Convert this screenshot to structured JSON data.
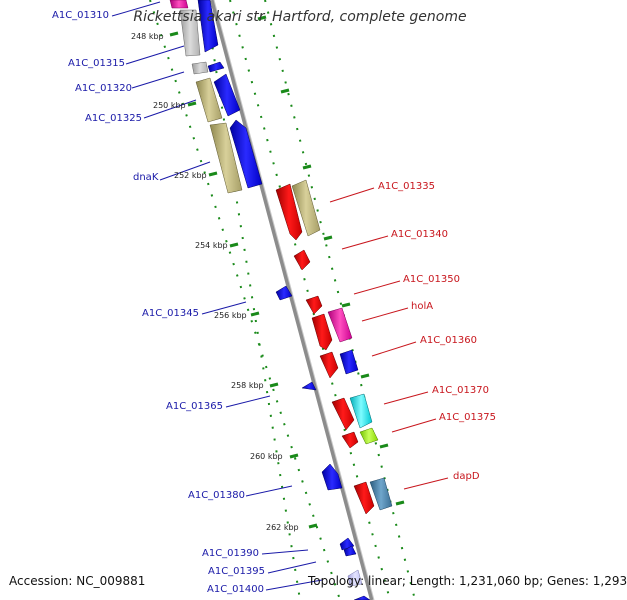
{
  "title": "Rickettsia akari str. Hartford, complete genome",
  "accession_text": "Accession: NC_009881",
  "summary_text": "Topology: linear; Length: 1,231,060 bp; Genes: 1,293",
  "colors": {
    "backbone": "#8c8c8c",
    "track_dots": "#1a8a1a",
    "left_label": "#1a1aa8",
    "right_label": "#c8161d"
  },
  "kbp_ticks": [
    "248 kbp",
    "250 kbp",
    "252 kbp",
    "254 kbp",
    "256 kbp",
    "258 kbp",
    "260 kbp",
    "262 kbp"
  ],
  "left_genes": [
    "A1C_01310",
    "A1C_01315",
    "A1C_01320",
    "A1C_01325",
    "dnaK",
    "A1C_01345",
    "A1C_01365",
    "A1C_01380",
    "A1C_01390",
    "A1C_01395",
    "A1C_01400"
  ],
  "right_genes": [
    "A1C_01335",
    "A1C_01340",
    "A1C_01350",
    "holA",
    "A1C_01360",
    "A1C_01370",
    "A1C_01375",
    "dapD"
  ]
}
